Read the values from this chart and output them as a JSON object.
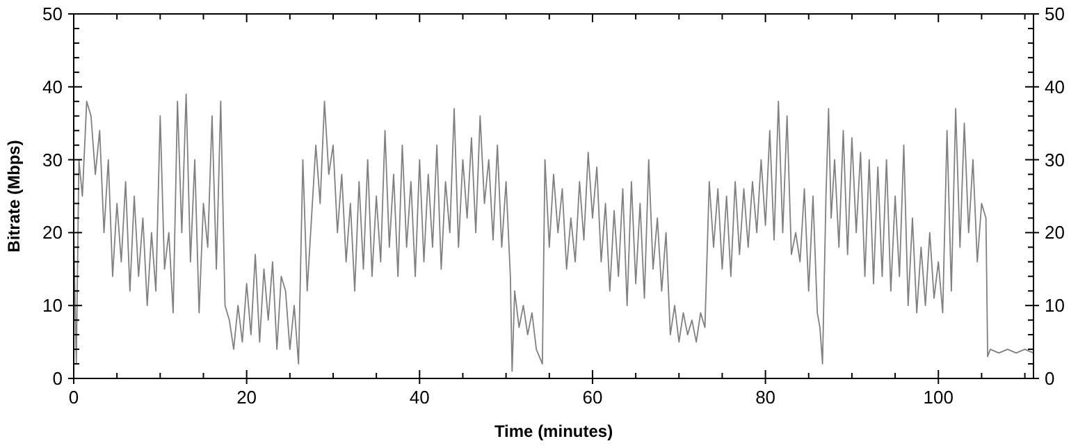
{
  "chart_data": {
    "type": "line",
    "xlabel": "Time (minutes)",
    "ylabel": "Bitrate (Mbps)",
    "xlim": [
      0,
      111
    ],
    "ylim": [
      0,
      50
    ],
    "y2lim": [
      0,
      50
    ],
    "xticks": [
      0,
      {
        "value": 5,
        "label": null
      },
      {
        "value": 10,
        "label": null
      },
      {
        "value": 15,
        "label": null
      },
      20,
      {
        "value": 25,
        "label": null
      },
      {
        "value": 30,
        "label": null
      },
      {
        "value": 35,
        "label": null
      },
      40,
      {
        "value": 45,
        "label": null
      },
      {
        "value": 50,
        "label": null
      },
      {
        "value": 55,
        "label": null
      },
      60,
      {
        "value": 65,
        "label": null
      },
      {
        "value": 70,
        "label": null
      },
      {
        "value": 75,
        "label": null
      },
      80,
      {
        "value": 85,
        "label": null
      },
      {
        "value": 90,
        "label": null
      },
      {
        "value": 95,
        "label": null
      },
      100,
      {
        "value": 105,
        "label": null
      },
      {
        "value": 110,
        "label": null
      }
    ],
    "yticks": [
      0,
      {
        "value": 2,
        "label": null
      },
      {
        "value": 4,
        "label": null
      },
      {
        "value": 6,
        "label": null
      },
      {
        "value": 8,
        "label": null
      },
      10,
      {
        "value": 12,
        "label": null
      },
      {
        "value": 14,
        "label": null
      },
      {
        "value": 16,
        "label": null
      },
      {
        "value": 18,
        "label": null
      },
      20,
      {
        "value": 22,
        "label": null
      },
      {
        "value": 24,
        "label": null
      },
      {
        "value": 26,
        "label": null
      },
      {
        "value": 28,
        "label": null
      },
      30,
      {
        "value": 32,
        "label": null
      },
      {
        "value": 34,
        "label": null
      },
      {
        "value": 36,
        "label": null
      },
      {
        "value": 38,
        "label": null
      },
      40,
      {
        "value": 42,
        "label": null
      },
      {
        "value": 44,
        "label": null
      },
      {
        "value": 46,
        "label": null
      },
      {
        "value": 48,
        "label": null
      },
      50
    ],
    "y2ticks": [
      0,
      {
        "value": 2,
        "label": null
      },
      {
        "value": 4,
        "label": null
      },
      {
        "value": 6,
        "label": null
      },
      {
        "value": 8,
        "label": null
      },
      10,
      {
        "value": 12,
        "label": null
      },
      {
        "value": 14,
        "label": null
      },
      {
        "value": 16,
        "label": null
      },
      {
        "value": 18,
        "label": null
      },
      20,
      {
        "value": 22,
        "label": null
      },
      {
        "value": 24,
        "label": null
      },
      {
        "value": 26,
        "label": null
      },
      {
        "value": 28,
        "label": null
      },
      30,
      {
        "value": 32,
        "label": null
      },
      {
        "value": 34,
        "label": null
      },
      {
        "value": 36,
        "label": null
      },
      {
        "value": 38,
        "label": null
      },
      40,
      {
        "value": 42,
        "label": null
      },
      {
        "value": 44,
        "label": null
      },
      {
        "value": 46,
        "label": null
      },
      {
        "value": 48,
        "label": null
      },
      50
    ],
    "grid": false,
    "marker": "none",
    "line_style": "solid",
    "series": [
      {
        "color": "#808080",
        "x": [
          0,
          0.3,
          0.6,
          1,
          1.5,
          2,
          2.5,
          3,
          3.5,
          4,
          4.5,
          5,
          5.5,
          6,
          6.5,
          7,
          7.5,
          8,
          8.5,
          9,
          9.5,
          10,
          10.5,
          11,
          11.5,
          12,
          12.5,
          13,
          13.5,
          14,
          14.5,
          15,
          15.5,
          16,
          16.5,
          17,
          17.5,
          18,
          18.5,
          19,
          19.5,
          20,
          20.5,
          21,
          21.5,
          22,
          22.5,
          23,
          23.5,
          24,
          24.5,
          25,
          25.5,
          26,
          26.5,
          27,
          27.5,
          28,
          28.5,
          29,
          29.5,
          30,
          30.5,
          31,
          31.5,
          32,
          32.5,
          33,
          33.5,
          34,
          34.5,
          35,
          35.5,
          36,
          36.5,
          37,
          37.5,
          38,
          38.5,
          39,
          39.5,
          40,
          40.5,
          41,
          41.5,
          42,
          42.5,
          43,
          43.5,
          44,
          44.5,
          45,
          45.5,
          46,
          46.5,
          47,
          47.5,
          48,
          48.5,
          49,
          49.5,
          50,
          50.5,
          50.7,
          51,
          51.5,
          52,
          52.5,
          53,
          53.5,
          54.2,
          54.5,
          55,
          55.5,
          56,
          56.5,
          57,
          57.5,
          58,
          58.5,
          59,
          59.5,
          60,
          60.5,
          61,
          61.5,
          62,
          62.5,
          63,
          63.5,
          64,
          64.5,
          65,
          65.5,
          66,
          66.5,
          67,
          67.5,
          68,
          68.5,
          69,
          69.5,
          70,
          70.5,
          71,
          71.5,
          72,
          72.5,
          73,
          73.5,
          74,
          74.5,
          75,
          75.5,
          76,
          76.5,
          77,
          77.5,
          78,
          78.5,
          79,
          79.5,
          80,
          80.5,
          81,
          81.5,
          82,
          82.5,
          83,
          83.5,
          84,
          84.5,
          85,
          85.5,
          86,
          86.3,
          86.6,
          87,
          87.3,
          87.6,
          88,
          88.5,
          89,
          89.5,
          90,
          90.5,
          91,
          91.5,
          92,
          92.5,
          93,
          93.5,
          94,
          94.5,
          95,
          95.5,
          96,
          96.5,
          97,
          97.5,
          98,
          98.5,
          99,
          99.5,
          100,
          100.5,
          101,
          101.5,
          102,
          102.5,
          103,
          103.5,
          104,
          104.5,
          105,
          105.5,
          105.7,
          106,
          107,
          108,
          109,
          110,
          111
        ],
        "values": [
          20,
          2,
          30,
          25,
          38,
          36,
          28,
          34,
          20,
          30,
          14,
          24,
          16,
          27,
          12,
          25,
          14,
          22,
          10,
          20,
          12,
          36,
          15,
          20,
          9,
          38,
          20,
          39,
          16,
          30,
          9,
          24,
          18,
          36,
          15,
          38,
          10,
          8,
          4,
          10,
          5,
          13,
          6,
          17,
          5,
          15,
          8,
          16,
          4,
          14,
          12,
          4,
          10,
          2,
          30,
          12,
          22,
          32,
          24,
          38,
          28,
          32,
          20,
          28,
          16,
          24,
          12,
          27,
          15,
          30,
          14,
          25,
          16,
          34,
          18,
          28,
          14,
          32,
          18,
          27,
          14,
          30,
          16,
          28,
          18,
          32,
          15,
          27,
          20,
          37,
          18,
          30,
          22,
          33,
          20,
          36,
          24,
          30,
          19,
          32,
          18,
          27,
          14,
          1,
          12,
          7,
          10,
          6,
          9,
          4,
          2,
          30,
          18,
          28,
          20,
          26,
          15,
          22,
          16,
          27,
          19,
          31,
          22,
          29,
          16,
          24,
          12,
          23,
          14,
          26,
          10,
          27,
          13,
          24,
          11,
          30,
          15,
          22,
          12,
          20,
          6,
          10,
          5,
          9,
          6,
          8,
          5,
          9,
          7,
          27,
          18,
          26,
          15,
          25,
          14,
          27,
          17,
          26,
          18,
          27,
          20,
          30,
          21,
          34,
          19,
          38,
          20,
          36,
          17,
          20,
          16,
          26,
          12,
          25,
          9,
          7,
          2,
          25,
          37,
          22,
          30,
          18,
          34,
          17,
          33,
          20,
          31,
          14,
          30,
          13,
          29,
          14,
          30,
          12,
          25,
          14,
          32,
          10,
          22,
          9,
          18,
          10,
          20,
          11,
          16,
          9,
          34,
          12,
          37,
          18,
          35,
          20,
          30,
          16,
          24,
          22,
          3,
          4,
          3.5,
          4,
          3.5,
          4,
          3.5
        ]
      }
    ]
  }
}
